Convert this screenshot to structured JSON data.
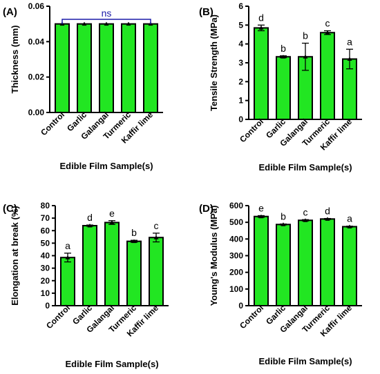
{
  "bar_color": "#22e622",
  "edge_color": "#000000",
  "ns_color": "#1a1aa8",
  "chart_data": [
    {
      "panel": "(A)",
      "type": "bar",
      "categories": [
        "Control",
        "Garlic",
        "Galangal",
        "Turmeric",
        "Kaffir lime"
      ],
      "values": [
        0.05,
        0.05,
        0.05,
        0.05,
        0.05
      ],
      "errors": [
        0.0,
        0.0,
        0.0,
        0.0,
        0.0
      ],
      "ylim": [
        0,
        0.06
      ],
      "yticks": [
        "0.00",
        "0.02",
        "0.04",
        "0.06"
      ],
      "ylabel": "Thickness (mm)",
      "xlabel": "Edible Film Sample(s)",
      "significance": "ns"
    },
    {
      "panel": "(B)",
      "type": "bar",
      "categories": [
        "Control",
        "Garlic",
        "Galangal",
        "Turmeric",
        "Kaffir lime"
      ],
      "values": [
        4.85,
        3.32,
        3.32,
        4.6,
        3.2
      ],
      "errors": [
        0.15,
        0.05,
        0.72,
        0.1,
        0.52
      ],
      "letters": [
        "d",
        "b",
        "b",
        "c",
        "a"
      ],
      "ylim": [
        0,
        6
      ],
      "yticks": [
        "0",
        "1",
        "2",
        "3",
        "4",
        "5",
        "6"
      ],
      "ylabel": "Tensile Strength (MPa)",
      "xlabel": "Edible Film Sample(s)"
    },
    {
      "panel": "(C)",
      "type": "bar",
      "categories": [
        "Control",
        "Garlic",
        "Galangal",
        "Turmeric",
        "Kaffir lime"
      ],
      "values": [
        38.5,
        64,
        66.5,
        51.5,
        54.5
      ],
      "errors": [
        3.5,
        0.5,
        1.5,
        0.8,
        3.5
      ],
      "letters": [
        "a",
        "d",
        "e",
        "b",
        "c"
      ],
      "ylim": [
        0,
        80
      ],
      "yticks": [
        "0",
        "10",
        "20",
        "30",
        "40",
        "50",
        "60",
        "70",
        "80"
      ],
      "ylabel": "Elongation at break (%)",
      "xlabel": "Edible Film Sample(s)"
    },
    {
      "panel": "(D)",
      "type": "bar",
      "categories": [
        "Control",
        "Garlic",
        "Galangal",
        "Turmeric",
        "Kaffir lime"
      ],
      "values": [
        535,
        487,
        512,
        520,
        474
      ],
      "errors": [
        5,
        3,
        4,
        3,
        3
      ],
      "letters": [
        "e",
        "b",
        "c",
        "d",
        "a"
      ],
      "ylim": [
        0,
        600
      ],
      "yticks": [
        "0",
        "100",
        "200",
        "300",
        "400",
        "500",
        "600"
      ],
      "ylabel": "Young's Modulus (MPa)",
      "xlabel": "Edible Film Sample(s)"
    }
  ]
}
